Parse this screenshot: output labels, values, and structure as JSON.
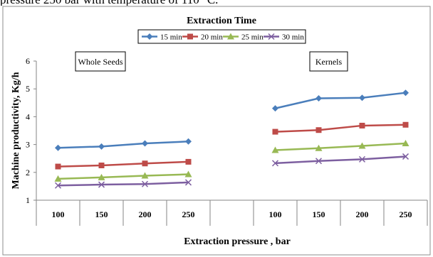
{
  "header_fragment": "pressure 250 bar with temperature of 110 °C.",
  "chart_data": {
    "type": "line",
    "title": "Extraction Time",
    "xlabel": "Extraction pressure , bar",
    "ylabel": "Machine productivity,  Kg/h",
    "ylim": [
      1,
      6
    ],
    "yticks": [
      1,
      2,
      3,
      4,
      5,
      6
    ],
    "grid": false,
    "legend_position": "top",
    "groups": [
      {
        "label": "Whole Seeds",
        "categories": [
          "100",
          "150",
          "200",
          "250"
        ],
        "series": [
          {
            "name": "15 min",
            "color": "#4a7ebb",
            "marker": "diamond",
            "values": [
              2.88,
              2.93,
              3.04,
              3.11
            ]
          },
          {
            "name": "20 min",
            "color": "#be4b48",
            "marker": "square",
            "values": [
              2.21,
              2.25,
              2.32,
              2.38
            ]
          },
          {
            "name": "25 min",
            "color": "#98b954",
            "marker": "triangle",
            "values": [
              1.77,
              1.82,
              1.88,
              1.93
            ]
          },
          {
            "name": "30 min",
            "color": "#7d5fa0",
            "marker": "x",
            "values": [
              1.53,
              1.56,
              1.58,
              1.64
            ]
          }
        ]
      },
      {
        "label": "Kernels",
        "categories": [
          "100",
          "150",
          "200",
          "250"
        ],
        "series": [
          {
            "name": "15 min",
            "color": "#4a7ebb",
            "marker": "diamond",
            "values": [
              4.3,
              4.66,
              4.68,
              4.86
            ]
          },
          {
            "name": "20 min",
            "color": "#be4b48",
            "marker": "square",
            "values": [
              3.46,
              3.52,
              3.68,
              3.71
            ]
          },
          {
            "name": "25 min",
            "color": "#98b954",
            "marker": "triangle",
            "values": [
              2.8,
              2.87,
              2.95,
              3.04
            ]
          },
          {
            "name": "30 min",
            "color": "#7d5fa0",
            "marker": "x",
            "values": [
              2.33,
              2.41,
              2.47,
              2.57
            ]
          }
        ]
      }
    ],
    "legend": [
      {
        "name": "15 min",
        "color": "#4a7ebb",
        "marker": "diamond"
      },
      {
        "name": "20 min",
        "color": "#be4b48",
        "marker": "square"
      },
      {
        "name": "25 min",
        "color": "#98b954",
        "marker": "triangle"
      },
      {
        "name": "30 min",
        "color": "#7d5fa0",
        "marker": "x"
      }
    ]
  }
}
